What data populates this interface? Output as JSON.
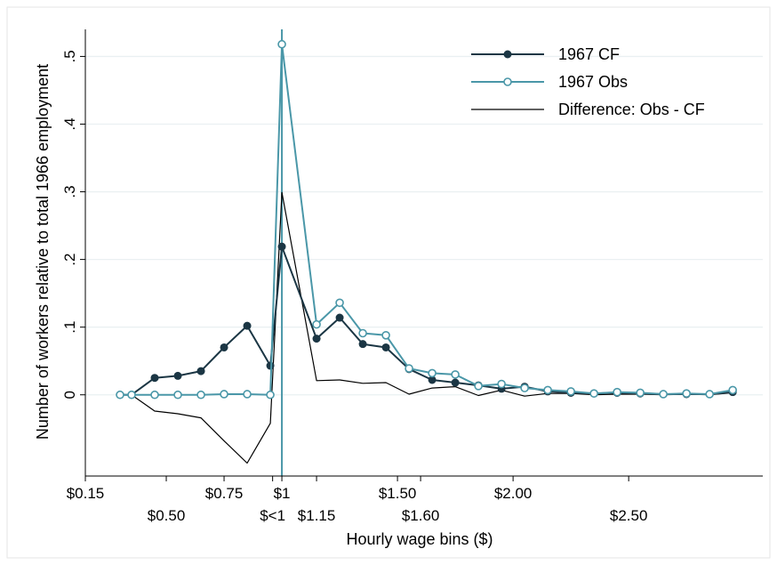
{
  "chart_data": {
    "type": "line",
    "xlabel": "Hourly wage bins ($)",
    "ylabel": "Number of workers  relative to total 1966 employment",
    "ylim": [
      -0.12,
      0.54
    ],
    "grid": true,
    "legend_position": "top-right",
    "y_ticks": [
      {
        "value": 0,
        "label": "0"
      },
      {
        "value": 0.1,
        "label": ".1"
      },
      {
        "value": 0.2,
        "label": ".2"
      },
      {
        "value": 0.3,
        "label": ".3"
      },
      {
        "value": 0.4,
        "label": ".4"
      },
      {
        "value": 0.5,
        "label": ".5"
      }
    ],
    "x_ticks_upper": [
      {
        "x": 0.15,
        "label": "$0.15"
      },
      {
        "x": 0.75,
        "label": "$0.75"
      },
      {
        "x": 1.0,
        "label": "$1"
      },
      {
        "x": 1.5,
        "label": "$1.50"
      },
      {
        "x": 2.0,
        "label": "$2.00"
      }
    ],
    "x_ticks_lower": [
      {
        "x": 0.5,
        "label": "$0.50"
      },
      {
        "x": 0.96,
        "label": "$<1"
      },
      {
        "x": 1.15,
        "label": "$1.15"
      },
      {
        "x": 1.6,
        "label": "$1.60"
      },
      {
        "x": 2.5,
        "label": "$2.50"
      }
    ],
    "vline_x": 1.0,
    "series": [
      {
        "name": "1967 CF",
        "color": "#1b3644",
        "marker": "filled-circle",
        "x": [
          0.3,
          0.35,
          0.45,
          0.55,
          0.65,
          0.75,
          0.85,
          0.95,
          1.0,
          1.15,
          1.25,
          1.35,
          1.45,
          1.55,
          1.65,
          1.75,
          1.85,
          1.95,
          2.05,
          2.15,
          2.25,
          2.35,
          2.45,
          2.55,
          2.65,
          2.75,
          2.85,
          2.95
        ],
        "values": [
          0.0,
          0.0,
          0.025,
          0.028,
          0.035,
          0.07,
          0.102,
          0.043,
          0.219,
          0.083,
          0.114,
          0.075,
          0.07,
          0.038,
          0.022,
          0.018,
          0.014,
          0.009,
          0.012,
          0.005,
          0.003,
          0.002,
          0.003,
          0.002,
          0.001,
          0.001,
          0.001,
          0.004
        ]
      },
      {
        "name": "1967 Obs",
        "color": "#4a97a8",
        "marker": "hollow-circle",
        "x": [
          0.3,
          0.35,
          0.45,
          0.55,
          0.65,
          0.75,
          0.85,
          0.95,
          1.0,
          1.15,
          1.25,
          1.35,
          1.45,
          1.55,
          1.65,
          1.75,
          1.85,
          1.95,
          2.05,
          2.15,
          2.25,
          2.35,
          2.45,
          2.55,
          2.65,
          2.75,
          2.85,
          2.95
        ],
        "values": [
          0.0,
          0.0,
          0.0,
          0.0,
          0.0,
          0.001,
          0.001,
          0.0,
          0.518,
          0.104,
          0.136,
          0.091,
          0.088,
          0.039,
          0.032,
          0.03,
          0.013,
          0.016,
          0.01,
          0.007,
          0.005,
          0.002,
          0.004,
          0.003,
          0.001,
          0.002,
          0.001,
          0.007
        ]
      },
      {
        "name": "Difference: Obs - CF",
        "color": "#000000",
        "marker": "none",
        "x": [
          0.3,
          0.35,
          0.45,
          0.55,
          0.65,
          0.75,
          0.85,
          0.95,
          1.0,
          1.15,
          1.25,
          1.35,
          1.45,
          1.55,
          1.65,
          1.75,
          1.85,
          1.95,
          2.05,
          2.15,
          2.25,
          2.35,
          2.45,
          2.55,
          2.65,
          2.75,
          2.85,
          2.95
        ],
        "values": [
          0.0,
          0.0,
          -0.024,
          -0.028,
          -0.034,
          -0.068,
          -0.101,
          -0.042,
          0.299,
          0.021,
          0.022,
          0.017,
          0.018,
          0.001,
          0.01,
          0.012,
          -0.001,
          0.007,
          -0.002,
          0.002,
          0.002,
          0.0,
          0.001,
          0.001,
          0.0,
          0.001,
          0.0,
          0.003
        ]
      }
    ]
  }
}
